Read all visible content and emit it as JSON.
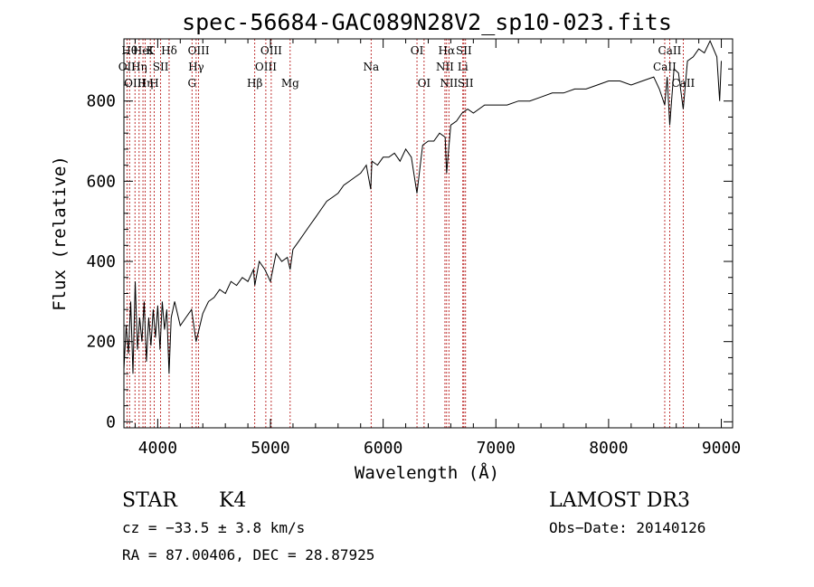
{
  "chart_data": {
    "type": "line",
    "title": "spec-56684-GAC089N28V2_sp10-023.fits",
    "xlabel": "Wavelength (Å)",
    "ylabel": "Flux (relative)",
    "xlim": [
      3700,
      9100
    ],
    "ylim": [
      -15,
      955
    ],
    "x_ticks": [
      4000,
      5000,
      6000,
      7000,
      8000,
      9000
    ],
    "x_tick_labels": [
      "4000",
      "5000",
      "6000",
      "7000",
      "8000",
      "9000"
    ],
    "y_ticks": [
      0,
      200,
      400,
      600,
      800
    ],
    "y_tick_labels": [
      "0",
      "200",
      "400",
      "600",
      "800"
    ],
    "series": [
      {
        "name": "spectrum",
        "x": [
          3700,
          3720,
          3740,
          3760,
          3780,
          3800,
          3820,
          3840,
          3860,
          3880,
          3900,
          3920,
          3940,
          3960,
          3980,
          4000,
          4020,
          4040,
          4060,
          4080,
          4100,
          4120,
          4150,
          4200,
          4250,
          4300,
          4340,
          4400,
          4450,
          4500,
          4550,
          4600,
          4650,
          4700,
          4750,
          4800,
          4850,
          4861,
          4900,
          4950,
          5000,
          5050,
          5100,
          5150,
          5175,
          5200,
          5250,
          5300,
          5350,
          5400,
          5450,
          5500,
          5550,
          5600,
          5650,
          5700,
          5750,
          5800,
          5850,
          5890,
          5900,
          5950,
          6000,
          6050,
          6100,
          6150,
          6200,
          6250,
          6300,
          6350,
          6400,
          6450,
          6500,
          6550,
          6563,
          6600,
          6650,
          6700,
          6750,
          6800,
          6900,
          7000,
          7100,
          7200,
          7300,
          7400,
          7500,
          7600,
          7700,
          7800,
          7900,
          8000,
          8100,
          8200,
          8300,
          8400,
          8450,
          8498,
          8520,
          8542,
          8580,
          8620,
          8662,
          8700,
          8750,
          8800,
          8850,
          8900,
          8960,
          8985,
          9000
        ],
        "y": [
          130,
          240,
          170,
          300,
          120,
          350,
          180,
          260,
          200,
          300,
          150,
          260,
          190,
          280,
          210,
          290,
          180,
          300,
          230,
          280,
          120,
          260,
          300,
          240,
          260,
          280,
          200,
          270,
          300,
          310,
          330,
          320,
          350,
          340,
          360,
          350,
          380,
          340,
          400,
          380,
          350,
          420,
          400,
          410,
          380,
          430,
          450,
          470,
          490,
          510,
          530,
          550,
          560,
          570,
          590,
          600,
          610,
          620,
          640,
          580,
          650,
          640,
          660,
          660,
          670,
          650,
          680,
          660,
          570,
          690,
          700,
          700,
          720,
          710,
          620,
          740,
          750,
          770,
          780,
          770,
          790,
          790,
          790,
          800,
          800,
          810,
          820,
          820,
          830,
          830,
          840,
          850,
          850,
          840,
          850,
          860,
          830,
          790,
          860,
          740,
          880,
          870,
          780,
          900,
          910,
          930,
          920,
          950,
          910,
          800,
          900
        ]
      }
    ],
    "line_markers": [
      {
        "wavelength": 3727,
        "row": 1,
        "label": "OII"
      },
      {
        "wavelength": 3750,
        "row": 0,
        "label": "Hθ"
      },
      {
        "wavelength": 3798,
        "row": 2,
        "label": "OIII"
      },
      {
        "wavelength": 3835,
        "row": 1,
        "label": "Hη"
      },
      {
        "wavelength": 3869,
        "row": 0,
        "label": "HeI"
      },
      {
        "wavelength": 3889,
        "row": 2,
        "label": "Hη"
      },
      {
        "wavelength": 3934,
        "row": 0,
        "label": "K"
      },
      {
        "wavelength": 3969,
        "row": 2,
        "label": "H"
      },
      {
        "wavelength": 4026,
        "row": 1,
        "label": "SII"
      },
      {
        "wavelength": 4101,
        "row": 0,
        "label": "Hδ"
      },
      {
        "wavelength": 4304,
        "row": 2,
        "label": "G"
      },
      {
        "wavelength": 4341,
        "row": 1,
        "label": "Hγ"
      },
      {
        "wavelength": 4363,
        "row": 0,
        "label": "OIII"
      },
      {
        "wavelength": 4861,
        "row": 2,
        "label": "Hβ"
      },
      {
        "wavelength": 4959,
        "row": 1,
        "label": "OIII"
      },
      {
        "wavelength": 5007,
        "row": 0,
        "label": "OIII"
      },
      {
        "wavelength": 5175,
        "row": 2,
        "label": "Mg"
      },
      {
        "wavelength": 5893,
        "row": 1,
        "label": "Na"
      },
      {
        "wavelength": 6300,
        "row": 0,
        "label": "OI"
      },
      {
        "wavelength": 6363,
        "row": 2,
        "label": "OI"
      },
      {
        "wavelength": 6548,
        "row": 1,
        "label": "NII"
      },
      {
        "wavelength": 6563,
        "row": 0,
        "label": "Hα"
      },
      {
        "wavelength": 6583,
        "row": 2,
        "label": "NII"
      },
      {
        "wavelength": 6707,
        "row": 1,
        "label": "Li"
      },
      {
        "wavelength": 6716,
        "row": 0,
        "label": "SII"
      },
      {
        "wavelength": 6731,
        "row": 2,
        "label": "SII"
      },
      {
        "wavelength": 8498,
        "row": 1,
        "label": "CaII"
      },
      {
        "wavelength": 8542,
        "row": 0,
        "label": "CaII"
      },
      {
        "wavelength": 8662,
        "row": 2,
        "label": "CaII"
      }
    ],
    "marker_color": "#b00000"
  },
  "footer": {
    "class": "STAR",
    "subclass": "K4",
    "survey": "LAMOST DR3",
    "redshift": "cz = −33.5 ± 3.8 km/s",
    "obs_date": "Obs−Date: 20140126",
    "coords": "RA =  87.00406, DEC =  28.87925"
  }
}
